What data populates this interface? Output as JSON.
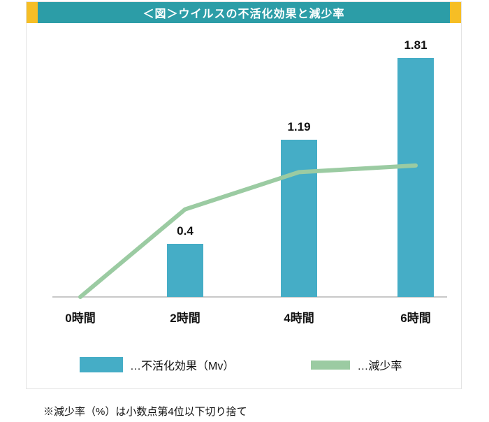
{
  "title": "＜図＞ウイルスの不活化効果と減少率",
  "note": "※減少率（%）は小数点第4位以下切り捨て",
  "legend": [
    {
      "label": "…不活化効果（Mv）",
      "type": "bar"
    },
    {
      "label": "…減少率",
      "type": "line"
    }
  ],
  "colors": {
    "title_bg": "#2c9da7",
    "title_accent": "#f6be25",
    "bar": "#45adc6",
    "line": "#9bcba2",
    "axis": "#c8c8c8",
    "text": "#111111"
  },
  "chart_data": {
    "type": "bar+line",
    "categories": [
      "0時間",
      "2時間",
      "4時間",
      "6時間"
    ],
    "series": [
      {
        "name": "不活化効果（Mv）",
        "type": "bar",
        "values": [
          0,
          0.4,
          1.19,
          1.81
        ],
        "labels": [
          "",
          "0.4",
          "1.19",
          "1.81"
        ]
      },
      {
        "name": "減少率",
        "type": "line",
        "values_estimated_percent": [
          0,
          66,
          94,
          99
        ]
      }
    ],
    "ylim": [
      0,
      2
    ],
    "grid": false,
    "legend_position": "bottom",
    "title": "＜図＞ウイルスの不活化効果と減少率"
  }
}
